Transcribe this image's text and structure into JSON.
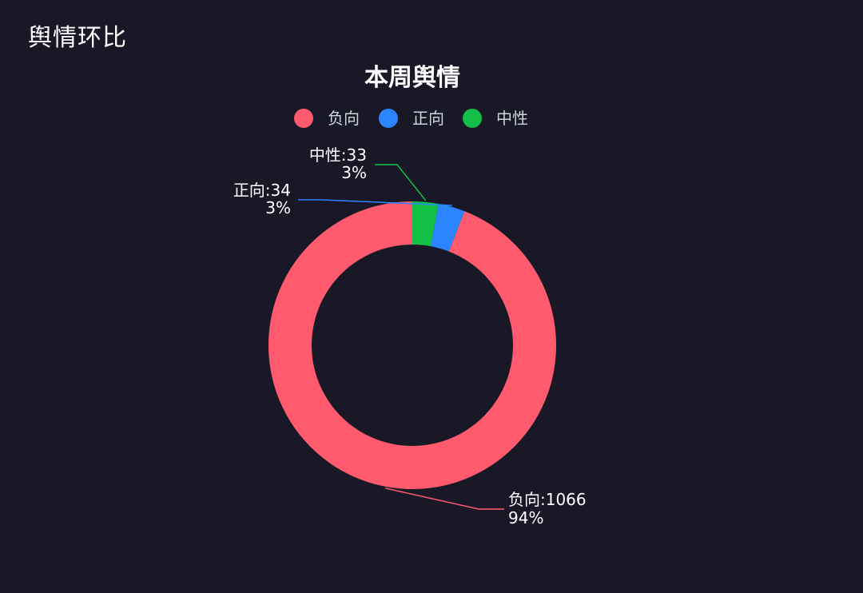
{
  "panel": {
    "title": "舆情环比"
  },
  "chart_data": {
    "type": "pie",
    "variant": "donut",
    "title": "本周舆情",
    "legend_position": "top-center",
    "series": [
      {
        "name": "负向",
        "value": 1066,
        "percent": "94%",
        "color": "#ff5a6e"
      },
      {
        "name": "正向",
        "value": 34,
        "percent": "3%",
        "color": "#2b85ff"
      },
      {
        "name": "中性",
        "value": 33,
        "percent": "3%",
        "color": "#12c046"
      }
    ]
  }
}
